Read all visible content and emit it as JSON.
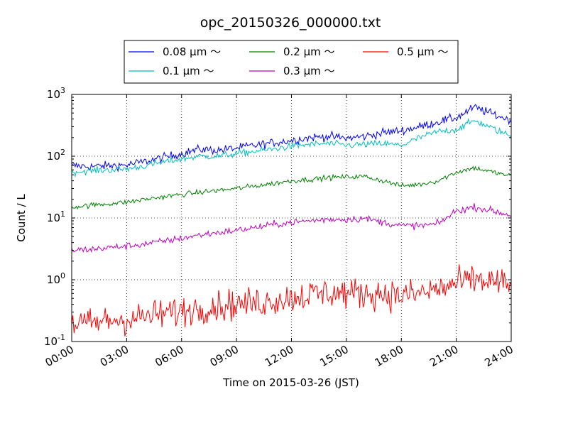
{
  "chart_data": {
    "type": "line",
    "title": "opc_20150326_000000.txt",
    "xlabel": "Time on 2015-03-26 (JST)",
    "ylabel": "Count / L",
    "yscale": "log",
    "ylim": [
      0.1,
      1000
    ],
    "xlim": [
      0,
      24
    ],
    "x_unit": "hours since 2015-03-26 00:00 JST",
    "grid": true,
    "legend_position": "top-center, above plot",
    "x_ticks": [
      "00:00",
      "03:00",
      "06:00",
      "09:00",
      "12:00",
      "15:00",
      "18:00",
      "21:00",
      "24:00"
    ],
    "y_ticks": [
      {
        "base": "10",
        "exp": "-1"
      },
      {
        "base": "10",
        "exp": "0"
      },
      {
        "base": "10",
        "exp": "1"
      },
      {
        "base": "10",
        "exp": "2"
      },
      {
        "base": "10",
        "exp": "3"
      }
    ],
    "x": [
      0,
      1,
      2,
      3,
      4,
      5,
      6,
      7,
      8,
      9,
      10,
      11,
      12,
      13,
      14,
      15,
      16,
      17,
      18,
      19,
      20,
      21,
      22,
      23,
      24
    ],
    "series": [
      {
        "name": "0.08 μm ～",
        "color": "#0000ff",
        "noise": 0.05,
        "values": [
          70,
          68,
          70,
          72,
          82,
          95,
          110,
          130,
          125,
          135,
          150,
          165,
          180,
          200,
          210,
          195,
          210,
          240,
          260,
          300,
          360,
          420,
          620,
          480,
          380
        ]
      },
      {
        "name": "0.1 μm ～",
        "color": "#00bfbf",
        "noise": 0.04,
        "values": [
          55,
          58,
          60,
          62,
          70,
          80,
          90,
          100,
          100,
          110,
          120,
          130,
          145,
          155,
          160,
          150,
          155,
          160,
          150,
          200,
          250,
          270,
          380,
          280,
          210
        ]
      },
      {
        "name": "0.2 μm ～",
        "color": "#008000",
        "noise": 0.03,
        "values": [
          15,
          16,
          17,
          18,
          20,
          22,
          24,
          26,
          28,
          30,
          33,
          36,
          40,
          42,
          45,
          46,
          47,
          40,
          33,
          35,
          40,
          55,
          65,
          55,
          48
        ]
      },
      {
        "name": "0.3 μm ～",
        "color": "#bf00bf",
        "noise": 0.04,
        "values": [
          3.0,
          3.1,
          3.3,
          3.5,
          3.8,
          4.2,
          4.7,
          5.3,
          5.8,
          6.3,
          7.0,
          7.8,
          8.5,
          9.0,
          9.5,
          9.5,
          9.8,
          8.5,
          7.5,
          7.5,
          8.0,
          13,
          15,
          13,
          11
        ]
      },
      {
        "name": "0.5 μm ～",
        "color": "#ff0000",
        "noise": 0.18,
        "values": [
          0.2,
          0.19,
          0.22,
          0.23,
          0.25,
          0.28,
          0.31,
          0.35,
          0.38,
          0.4,
          0.42,
          0.47,
          0.52,
          0.57,
          0.62,
          0.6,
          0.6,
          0.6,
          0.55,
          0.6,
          0.7,
          0.85,
          1.0,
          0.95,
          0.75
        ]
      }
    ]
  }
}
